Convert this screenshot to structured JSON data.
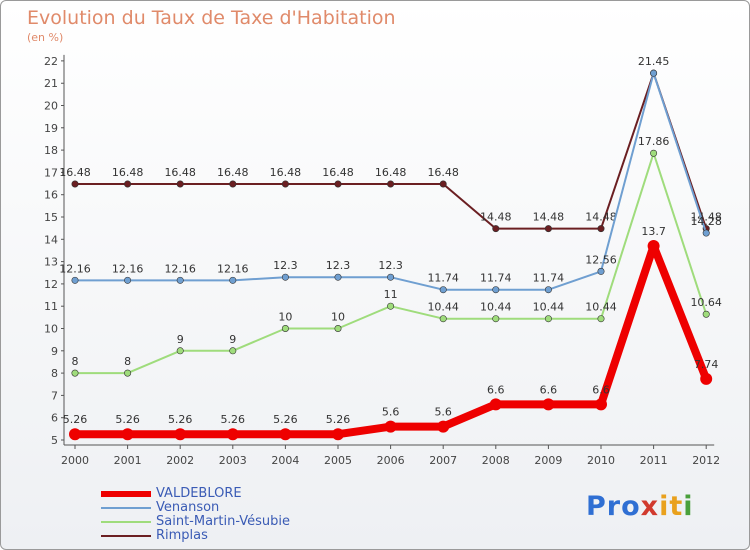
{
  "chart_data": {
    "type": "line",
    "title": "Evolution du Taux de Taxe d'Habitation",
    "subtitle": "(en %)",
    "categories": [
      "2000",
      "2001",
      "2002",
      "2003",
      "2004",
      "2005",
      "2006",
      "2007",
      "2008",
      "2009",
      "2010",
      "2011",
      "2012"
    ],
    "ylim": [
      5,
      22
    ],
    "yticks": [
      5,
      6,
      7,
      8,
      9,
      10,
      11,
      12,
      13,
      14,
      15,
      16,
      17,
      18,
      19,
      20,
      21,
      22
    ],
    "grid": false,
    "legend_position": "bottom-left",
    "series": [
      {
        "name": "Rimplas",
        "color": "#6b1f22",
        "values": [
          16.48,
          16.48,
          16.48,
          16.48,
          16.48,
          16.48,
          16.48,
          16.48,
          14.48,
          14.48,
          14.48,
          21.45,
          14.48
        ],
        "labels": [
          "16.48",
          "16.48",
          "16.48",
          "16.48",
          "16.48",
          "16.48",
          "16.48",
          "16.48",
          "14.48",
          "14.48",
          "14.48",
          "21.45",
          "14.48"
        ]
      },
      {
        "name": "Venanson",
        "color": "#6f9fd1",
        "values": [
          12.16,
          12.16,
          12.16,
          12.16,
          12.3,
          12.3,
          12.3,
          11.74,
          11.74,
          11.74,
          12.56,
          21.45,
          14.28
        ],
        "labels": [
          "12.16",
          "12.16",
          "12.16",
          "12.16",
          "12.3",
          "12.3",
          "12.3",
          "11.74",
          "11.74",
          "11.74",
          "12.56",
          "",
          "14.28"
        ]
      },
      {
        "name": "Saint-Martin-Vésubie",
        "color": "#9fdc7c",
        "values": [
          8,
          8,
          9,
          9,
          10,
          10,
          11,
          10.44,
          10.44,
          10.44,
          10.44,
          17.86,
          10.64
        ],
        "labels": [
          "8",
          "8",
          "9",
          "9",
          "10",
          "10",
          "11",
          "10.44",
          "10.44",
          "10.44",
          "10.44",
          "17.86",
          "10.64"
        ]
      },
      {
        "name": "VALDEBLORE",
        "color": "#ee0000",
        "values": [
          5.26,
          5.26,
          5.26,
          5.26,
          5.26,
          5.26,
          5.6,
          5.6,
          6.6,
          6.6,
          6.6,
          13.7,
          7.74
        ],
        "labels": [
          "5.26",
          "5.26",
          "5.26",
          "5.26",
          "5.26",
          "5.26",
          "5.6",
          "5.6",
          "6.6",
          "6.6",
          "6.6",
          "13.7",
          "7.74"
        ]
      }
    ]
  },
  "legend": [
    {
      "label": "VALDEBLORE",
      "color": "#ee0000"
    },
    {
      "label": "Venanson",
      "color": "#6f9fd1"
    },
    {
      "label": "Saint-Martin-Vésubie",
      "color": "#9fdc7c"
    },
    {
      "label": "Rimplas",
      "color": "#6b1f22"
    }
  ],
  "logo": {
    "text": "Proxiti",
    "parts": [
      "Pro",
      "x",
      "it",
      "i"
    ]
  }
}
